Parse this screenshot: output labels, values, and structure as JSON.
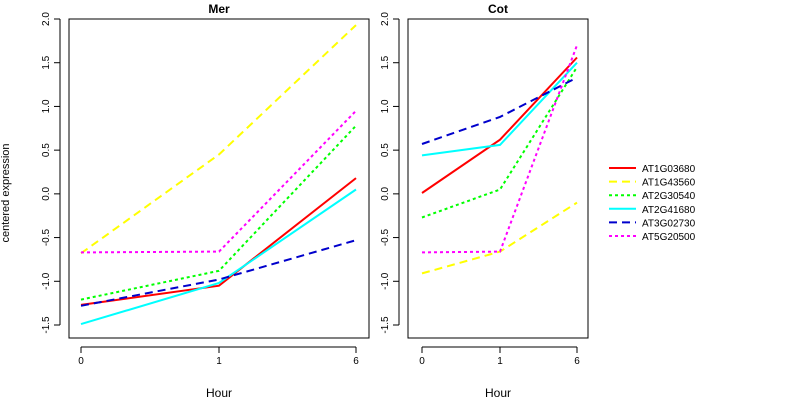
{
  "chart_data": {
    "type": "line",
    "ylabel": "centered expression",
    "xlabel": "Hour",
    "x": [
      "0",
      "1",
      "6"
    ],
    "yticks": [
      -1.5,
      -1.0,
      -0.5,
      0.0,
      0.5,
      1.0,
      1.5,
      2.0
    ],
    "yticklabels": [
      "-1.5",
      "-1.0",
      "-0.5",
      "0.0",
      "0.5",
      "1.0",
      "1.5",
      "2.0"
    ],
    "ylim": [
      -1.5,
      2.0
    ],
    "legend_position": "right",
    "series_styles": [
      {
        "name": "AT1G03680",
        "color": "#ff0000",
        "dash": "solid"
      },
      {
        "name": "AT1G43560",
        "color": "#ffff00",
        "dash": "dashed"
      },
      {
        "name": "AT2G30540",
        "color": "#00ff00",
        "dash": "dotted"
      },
      {
        "name": "AT2G41680",
        "color": "#00ffff",
        "dash": "solid"
      },
      {
        "name": "AT3G02730",
        "color": "#0000cc",
        "dash": "dashed"
      },
      {
        "name": "AT5G20500",
        "color": "#ff00ff",
        "dash": "dotted"
      }
    ],
    "panels": [
      {
        "title": "Mer",
        "series": [
          {
            "name": "AT1G03680",
            "values": [
              -1.27,
              -1.05,
              0.18
            ]
          },
          {
            "name": "AT1G43560",
            "values": [
              -0.68,
              0.45,
              1.93
            ]
          },
          {
            "name": "AT2G30540",
            "values": [
              -1.21,
              -0.88,
              0.78
            ]
          },
          {
            "name": "AT2G41680",
            "values": [
              -1.49,
              -1.02,
              0.05
            ]
          },
          {
            "name": "AT3G02730",
            "values": [
              -1.28,
              -0.98,
              -0.53
            ]
          },
          {
            "name": "AT5G20500",
            "values": [
              -0.67,
              -0.66,
              0.95
            ]
          }
        ]
      },
      {
        "title": "Cot",
        "series": [
          {
            "name": "AT1G03680",
            "values": [
              0.01,
              0.62,
              1.56
            ]
          },
          {
            "name": "AT1G43560",
            "values": [
              -0.91,
              -0.66,
              -0.1
            ]
          },
          {
            "name": "AT2G30540",
            "values": [
              -0.27,
              0.05,
              1.45
            ]
          },
          {
            "name": "AT2G41680",
            "values": [
              0.44,
              0.56,
              1.5
            ]
          },
          {
            "name": "AT3G02730",
            "values": [
              0.57,
              0.88,
              1.33
            ]
          },
          {
            "name": "AT5G20500",
            "values": [
              -0.67,
              -0.66,
              1.7
            ]
          }
        ]
      }
    ]
  }
}
